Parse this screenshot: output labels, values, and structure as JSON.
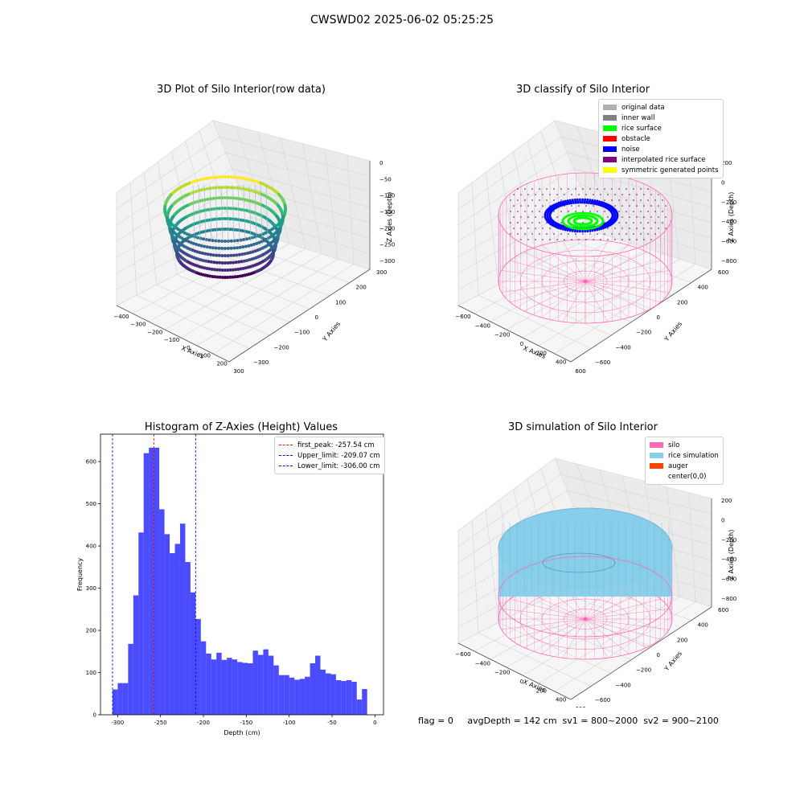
{
  "suptitle": "CWSWD02 2025-06-02 05:25:25",
  "panel1": {
    "title": "3D Plot of Silo Interior(row data)",
    "xlabel": "X Axies",
    "ylabel": "Y Axies",
    "zlabel": "Z Axies (Depth)",
    "xticks": [
      "−400",
      "−300",
      "−200",
      "−100",
      "0",
      "100",
      "200",
      "300"
    ],
    "yticks": [
      "300",
      "200",
      "100",
      "0",
      "−100",
      "−200",
      "−300"
    ],
    "zticks": [
      "0",
      "−50",
      "−100",
      "−150",
      "−200",
      "−250",
      "−300"
    ]
  },
  "panel2": {
    "title": "3D classify of Silo Interior",
    "xlabel": "X Axies",
    "ylabel": "Y Axies",
    "zlabel": "Z Axies (Depth)",
    "xticks": [
      "−600",
      "−400",
      "−200",
      "0",
      "200",
      "400",
      "600"
    ],
    "yticks": [
      "600",
      "400",
      "200",
      "0",
      "−200",
      "−400",
      "−600"
    ],
    "zticks": [
      "200",
      "0",
      "−200",
      "−400",
      "−600",
      "−800"
    ],
    "legend": [
      {
        "label": "original data",
        "color": "#b0b0b0"
      },
      {
        "label": "inner wall",
        "color": "#808080"
      },
      {
        "label": "rice surface",
        "color": "#00ff00"
      },
      {
        "label": "obstacle",
        "color": "#ff0000"
      },
      {
        "label": "noise",
        "color": "#0000ff"
      },
      {
        "label": "interpolated rice surface",
        "color": "#800080"
      },
      {
        "label": "symmetric generated points",
        "color": "#ffff00"
      }
    ]
  },
  "panel3": {
    "title": "Histogram of Z-Axies (Height) Values",
    "legend": [
      {
        "label": "first_peak: -257.54 cm",
        "color": "#ff0000"
      },
      {
        "label": "Upper_limit: -209.07 cm",
        "color": "#0000ff"
      },
      {
        "label": "Lower_limit: -306.00 cm",
        "color": "#0000ff"
      }
    ]
  },
  "panel4": {
    "title": "3D simulation of Silo Interior",
    "xlabel": "X Axies",
    "ylabel": "Y Axies",
    "zlabel": "Z Axies (Depth)",
    "xticks": [
      "−600",
      "−400",
      "−200",
      "0",
      "200",
      "400",
      "600"
    ],
    "yticks": [
      "600",
      "400",
      "200",
      "0",
      "−200",
      "−400",
      "−600"
    ],
    "zticks": [
      "200",
      "0",
      "−200",
      "−400",
      "−600",
      "−800"
    ],
    "legend": [
      {
        "label": "silo",
        "color": "#ff69b4"
      },
      {
        "label": "rice simulation",
        "color": "#87ceeb"
      },
      {
        "label": "auger",
        "color": "#ff4500"
      },
      {
        "label": "center(0,0)",
        "color": "#ffffff"
      }
    ]
  },
  "footer": "flag = 0     avgDepth = 142 cm  sv1 = 800~2000  sv2 = 900~2100",
  "chart_data": {
    "type": "bar",
    "title": "Histogram of Z-Axies (Height) Values",
    "xlabel": "Depth (cm)",
    "ylabel": "Frequency",
    "xlim": [
      -320,
      10
    ],
    "ylim": [
      0,
      665
    ],
    "xticks": [
      -300,
      -250,
      -200,
      -150,
      -100,
      -50,
      0
    ],
    "yticks": [
      0,
      100,
      200,
      300,
      400,
      500,
      600
    ],
    "bin_width": 6.06,
    "bin_start": -306.0,
    "values": [
      60,
      75,
      75,
      168,
      283,
      432,
      620,
      633,
      633,
      487,
      428,
      383,
      405,
      453,
      362,
      290,
      227,
      174,
      145,
      131,
      147,
      130,
      135,
      131,
      125,
      123,
      122,
      152,
      142,
      155,
      140,
      117,
      94,
      94,
      88,
      83,
      85,
      90,
      122,
      140,
      107,
      98,
      96,
      82,
      80,
      82,
      78,
      36,
      61
    ],
    "series": [
      {
        "name": "first_peak: -257.54 cm",
        "type": "vline",
        "x": -257.54,
        "color": "#ff0000"
      },
      {
        "name": "Upper_limit: -209.07 cm",
        "type": "vline",
        "x": -209.07,
        "color": "#0000ff"
      },
      {
        "name": "Lower_limit: -306.00 cm",
        "type": "vline",
        "x": -306.0,
        "color": "#0000ff"
      }
    ],
    "bar_color": "#0000ff",
    "legend_position": "upper right",
    "grid": false
  }
}
